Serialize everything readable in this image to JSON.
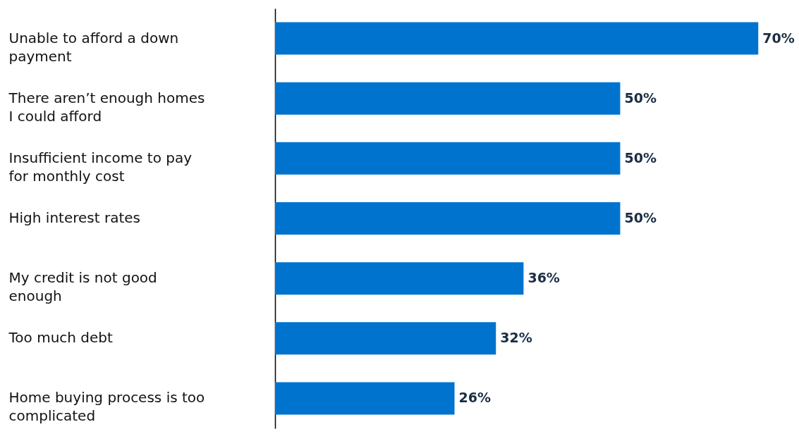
{
  "chart_data": {
    "type": "bar",
    "orientation": "horizontal",
    "categories": [
      "Unable to afford a down payment",
      "There aren’t enough homes I could afford",
      "Insufficient income to pay for monthly cost",
      "High interest rates",
      "My credit is not good enough",
      "Too much debt",
      "Home buying process is too complicated"
    ],
    "values": [
      70,
      50,
      50,
      50,
      36,
      32,
      26
    ],
    "value_labels": [
      "70%",
      "50%",
      "50%",
      "50%",
      "36%",
      "32%",
      "26%"
    ],
    "color": "#0073cf"
  }
}
